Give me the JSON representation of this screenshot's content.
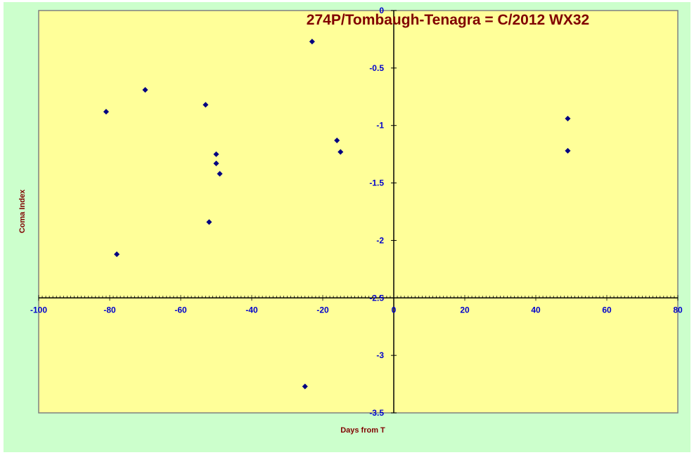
{
  "colors": {
    "outer_background": "#ccffcc",
    "plot_background": "#ffff99",
    "plot_border": "#808080",
    "axis_line": "#000000",
    "tick_label": "#0000cc",
    "title": "#800000",
    "axis_title": "#800000",
    "marker": "#000080"
  },
  "chart_data": {
    "type": "scatter",
    "title": "274P/Tombaugh-Tenagra = C/2012 WX32",
    "xlabel": "Days from T",
    "ylabel": "Coma Index",
    "xlim": [
      -100,
      80
    ],
    "ylim": [
      -3.5,
      0
    ],
    "x_ticks": [
      -100,
      -80,
      -60,
      -40,
      -20,
      0,
      20,
      40,
      60,
      80
    ],
    "y_ticks": [
      0,
      -0.5,
      -1,
      -1.5,
      -2,
      -2.5,
      -3,
      -3.5
    ],
    "x_tick_labels": [
      "-100",
      "-80",
      "-60",
      "-40",
      "-20",
      "0",
      "20",
      "40",
      "60",
      "80"
    ],
    "y_tick_labels": [
      "0",
      "-0.5",
      "-1",
      "-1.5",
      "-2",
      "-2.5",
      "-3",
      "-3.5"
    ],
    "marker": "diamond",
    "grid": false,
    "legend": "none",
    "points": [
      {
        "x": -81,
        "y": -0.88
      },
      {
        "x": -78,
        "y": -2.12
      },
      {
        "x": -70,
        "y": -0.69
      },
      {
        "x": -53,
        "y": -0.82
      },
      {
        "x": -52,
        "y": -1.84
      },
      {
        "x": -50,
        "y": -1.25
      },
      {
        "x": -50,
        "y": -1.33
      },
      {
        "x": -49,
        "y": -1.42
      },
      {
        "x": -25,
        "y": -3.27
      },
      {
        "x": -23,
        "y": -0.27
      },
      {
        "x": -16,
        "y": -1.13
      },
      {
        "x": -15,
        "y": -1.23
      },
      {
        "x": 49,
        "y": -0.94
      },
      {
        "x": 49,
        "y": -1.22
      }
    ]
  }
}
